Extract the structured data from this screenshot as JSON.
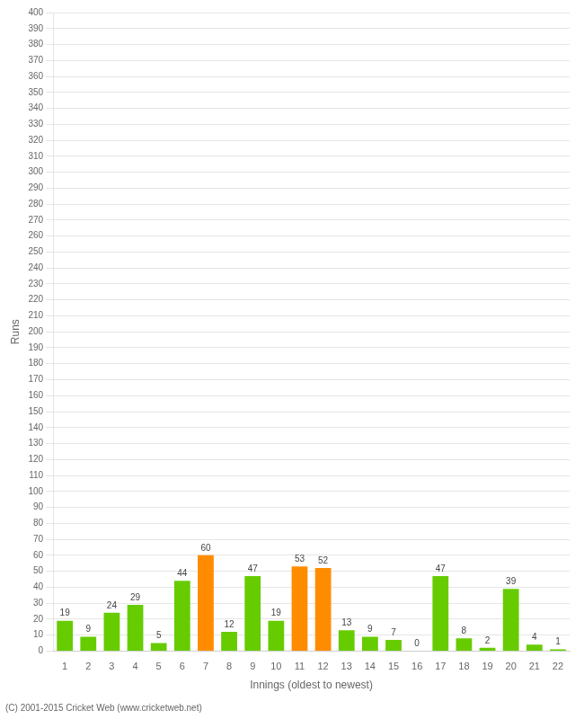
{
  "chart_data": {
    "type": "bar",
    "xlabel": "Innings (oldest to newest)",
    "ylabel": "Runs",
    "footer": "(C) 2001-2015 Cricket Web (www.cricketweb.net)",
    "categories": [
      "1",
      "2",
      "3",
      "4",
      "5",
      "6",
      "7",
      "8",
      "9",
      "10",
      "11",
      "12",
      "13",
      "14",
      "15",
      "16",
      "17",
      "18",
      "19",
      "20",
      "21",
      "22"
    ],
    "values": [
      19,
      9,
      24,
      29,
      5,
      44,
      60,
      12,
      47,
      19,
      53,
      52,
      13,
      9,
      7,
      0,
      47,
      8,
      2,
      39,
      4,
      1
    ],
    "colors": [
      "#66cc00",
      "#66cc00",
      "#66cc00",
      "#66cc00",
      "#66cc00",
      "#66cc00",
      "#ff8c00",
      "#66cc00",
      "#66cc00",
      "#66cc00",
      "#ff8c00",
      "#ff8c00",
      "#66cc00",
      "#66cc00",
      "#66cc00",
      "#66cc00",
      "#66cc00",
      "#66cc00",
      "#66cc00",
      "#66cc00",
      "#66cc00",
      "#66cc00"
    ],
    "ylim": [
      0,
      400
    ],
    "yticks": [
      0,
      10,
      20,
      30,
      40,
      50,
      60,
      70,
      80,
      90,
      100,
      110,
      120,
      130,
      140,
      150,
      160,
      170,
      180,
      190,
      200,
      210,
      220,
      230,
      240,
      250,
      260,
      270,
      280,
      290,
      300,
      310,
      320,
      330,
      340,
      350,
      360,
      370,
      380,
      390,
      400
    ],
    "grid": true,
    "data_labels": true
  }
}
